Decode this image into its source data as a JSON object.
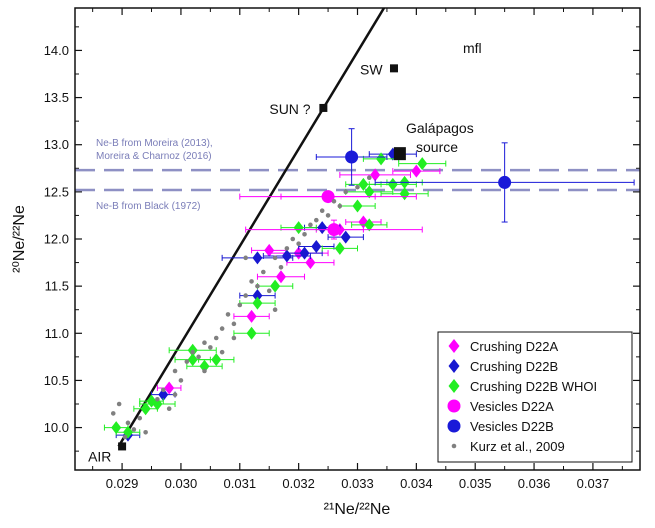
{
  "chart_data": {
    "type": "scatter",
    "xlabel": "²¹Ne/²²Ne",
    "ylabel": "²⁰Ne/²²Ne",
    "xlim": [
      0.0282,
      0.0378
    ],
    "ylim": [
      9.55,
      14.45
    ],
    "xticks": [
      {
        "v": 0.029,
        "label": "0.029"
      },
      {
        "v": 0.03,
        "label": "0.030"
      },
      {
        "v": 0.031,
        "label": "0.031"
      },
      {
        "v": 0.032,
        "label": "0.032"
      },
      {
        "v": 0.033,
        "label": "0.033"
      },
      {
        "v": 0.034,
        "label": "0.034"
      },
      {
        "v": 0.035,
        "label": "0.035"
      },
      {
        "v": 0.036,
        "label": "0.036"
      },
      {
        "v": 0.037,
        "label": "0.037"
      }
    ],
    "yticks": [
      {
        "v": 10.0,
        "label": "10.0"
      },
      {
        "v": 10.5,
        "label": "10.5"
      },
      {
        "v": 11.0,
        "label": "11.0"
      },
      {
        "v": 11.5,
        "label": "11.5"
      },
      {
        "v": 12.0,
        "label": "12.0"
      },
      {
        "v": 12.5,
        "label": "12.5"
      },
      {
        "v": 13.0,
        "label": "13.0"
      },
      {
        "v": 13.5,
        "label": "13.5"
      },
      {
        "v": 14.0,
        "label": "14.0"
      }
    ],
    "mfl": {
      "label": "mfl",
      "x1": 0.02894,
      "y1": 9.8,
      "x2": 0.03345,
      "y2": 14.45
    },
    "reference_lines": [
      {
        "label_lines": [
          "Ne-B from Moreira (2013),",
          "Moreira & Charnoz (2016)"
        ],
        "y": 12.73,
        "color": "#8e90c4"
      },
      {
        "label_lines": [
          "Ne-B from Black (1972)"
        ],
        "y": 12.52,
        "color": "#8e90c4"
      }
    ],
    "annotations": [
      {
        "id": "sw",
        "text": "SW",
        "x": 0.03362,
        "y": 13.81
      },
      {
        "id": "sun",
        "text": "SUN ?",
        "x": 0.03242,
        "y": 13.39
      },
      {
        "id": "air",
        "text": "AIR",
        "x": 0.029,
        "y": 9.8
      },
      {
        "id": "galapagos",
        "text_lines": [
          "Galápagos",
          "source"
        ],
        "x": 0.03372,
        "y": 12.9
      }
    ],
    "series": [
      {
        "name": "Crushing D22A",
        "marker": "diamond",
        "color": "#ff00ff",
        "points": [
          {
            "x": 0.0298,
            "y": 10.42,
            "xerr": 0.0002
          },
          {
            "x": 0.0312,
            "y": 11.18,
            "xerr": 0.0003
          },
          {
            "x": 0.0317,
            "y": 11.6,
            "xerr": 0.0004
          },
          {
            "x": 0.032,
            "y": 11.85,
            "xerr": 0.0005
          },
          {
            "x": 0.0322,
            "y": 11.75,
            "xerr": 0.0004
          },
          {
            "x": 0.0315,
            "y": 11.88,
            "xerr": 0.0003
          },
          {
            "x": 0.0325,
            "y": 12.45,
            "xerr": 0.0008
          },
          {
            "x": 0.0327,
            "y": 12.1,
            "xerr": 0.0004
          },
          {
            "x": 0.0331,
            "y": 12.18,
            "xerr": 0.0003
          },
          {
            "x": 0.0333,
            "y": 12.68,
            "xerr": 0.0006
          },
          {
            "x": 0.034,
            "y": 12.72,
            "xerr": 0.0004
          }
        ]
      },
      {
        "name": "Crushing D22B",
        "marker": "diamond",
        "color": "#1818d0",
        "points": [
          {
            "x": 0.0291,
            "y": 9.92,
            "xerr": 0.0002
          },
          {
            "x": 0.0297,
            "y": 10.35,
            "xerr": 0.0002
          },
          {
            "x": 0.0313,
            "y": 11.4,
            "xerr": 0.0003
          },
          {
            "x": 0.0313,
            "y": 11.8,
            "xerr": 0.0006
          },
          {
            "x": 0.0318,
            "y": 11.82,
            "xerr": 0.0004
          },
          {
            "x": 0.0321,
            "y": 11.85,
            "xerr": 0.0003
          },
          {
            "x": 0.0323,
            "y": 11.92,
            "xerr": 0.0003
          },
          {
            "x": 0.0324,
            "y": 12.12,
            "xerr": 0.0003
          },
          {
            "x": 0.0328,
            "y": 12.02,
            "xerr": 0.0003
          },
          {
            "x": 0.0336,
            "y": 12.9,
            "xerr": 0.0004
          }
        ]
      },
      {
        "name": "Crushing D22B WHOI",
        "marker": "diamond",
        "color": "#22ee22",
        "points": [
          {
            "x": 0.0289,
            "y": 10.0,
            "xerr": 0.0002
          },
          {
            "x": 0.0291,
            "y": 9.95,
            "xerr": 0.0002
          },
          {
            "x": 0.0294,
            "y": 10.2,
            "xerr": 0.0002
          },
          {
            "x": 0.0295,
            "y": 10.28,
            "xerr": 0.0002
          },
          {
            "x": 0.0296,
            "y": 10.25,
            "xerr": 0.0003
          },
          {
            "x": 0.0302,
            "y": 10.72,
            "xerr": 0.0003
          },
          {
            "x": 0.0302,
            "y": 10.82,
            "xerr": 0.0004
          },
          {
            "x": 0.0304,
            "y": 10.65,
            "xerr": 0.0003
          },
          {
            "x": 0.0306,
            "y": 10.72,
            "xerr": 0.0003
          },
          {
            "x": 0.0312,
            "y": 11.0,
            "xerr": 0.0003
          },
          {
            "x": 0.0313,
            "y": 11.32,
            "xerr": 0.0003
          },
          {
            "x": 0.0316,
            "y": 11.5,
            "xerr": 0.0003
          },
          {
            "x": 0.032,
            "y": 12.12,
            "xerr": 0.0003
          },
          {
            "x": 0.0327,
            "y": 11.9,
            "xerr": 0.0003
          },
          {
            "x": 0.033,
            "y": 12.35,
            "xerr": 0.0003
          },
          {
            "x": 0.0331,
            "y": 12.58,
            "xerr": 0.0003
          },
          {
            "x": 0.0332,
            "y": 12.5,
            "xerr": 0.0004
          },
          {
            "x": 0.0334,
            "y": 12.85,
            "xerr": 0.0003
          },
          {
            "x": 0.0336,
            "y": 12.58,
            "xerr": 0.0004
          },
          {
            "x": 0.0338,
            "y": 12.6,
            "xerr": 0.0003
          },
          {
            "x": 0.0338,
            "y": 12.48,
            "xerr": 0.0004
          },
          {
            "x": 0.0341,
            "y": 12.8,
            "xerr": 0.0004
          },
          {
            "x": 0.0332,
            "y": 12.15,
            "xerr": 0.0003
          }
        ]
      },
      {
        "name": "Vesicles D22A",
        "marker": "circle",
        "color": "#ff00ff",
        "points": [
          {
            "x": 0.0325,
            "y": 12.45,
            "xerr": 0.0015,
            "yerr": 0.05
          },
          {
            "x": 0.0326,
            "y": 12.1,
            "xerr": 0.0015,
            "yerr": 0.1
          }
        ]
      },
      {
        "name": "Vesicles D22B",
        "marker": "circle",
        "color": "#1a1ad8",
        "points": [
          {
            "x": 0.0329,
            "y": 12.87,
            "xerr": 0.0006,
            "yerr": 0.3
          },
          {
            "x": 0.0355,
            "y": 12.6,
            "xerr": 0.0022,
            "yerr": 0.42
          }
        ]
      },
      {
        "name": "Kurz et al., 2009",
        "marker": "dot",
        "color": "#808080",
        "points": [
          {
            "x": 0.02885,
            "y": 10.15
          },
          {
            "x": 0.02895,
            "y": 10.25
          },
          {
            "x": 0.02905,
            "y": 9.9
          },
          {
            "x": 0.0291,
            "y": 10.05
          },
          {
            "x": 0.0292,
            "y": 9.98
          },
          {
            "x": 0.0293,
            "y": 10.1
          },
          {
            "x": 0.0294,
            "y": 9.95
          },
          {
            "x": 0.0296,
            "y": 10.3
          },
          {
            "x": 0.0297,
            "y": 10.4
          },
          {
            "x": 0.0298,
            "y": 10.2
          },
          {
            "x": 0.0299,
            "y": 10.35
          },
          {
            "x": 0.03,
            "y": 10.5
          },
          {
            "x": 0.0301,
            "y": 10.7
          },
          {
            "x": 0.0302,
            "y": 10.8
          },
          {
            "x": 0.0303,
            "y": 10.75
          },
          {
            "x": 0.0304,
            "y": 10.9
          },
          {
            "x": 0.0305,
            "y": 10.85
          },
          {
            "x": 0.0306,
            "y": 10.95
          },
          {
            "x": 0.0307,
            "y": 10.8
          },
          {
            "x": 0.0307,
            "y": 11.05
          },
          {
            "x": 0.0308,
            "y": 11.2
          },
          {
            "x": 0.0309,
            "y": 11.1
          },
          {
            "x": 0.031,
            "y": 11.3
          },
          {
            "x": 0.0311,
            "y": 11.4
          },
          {
            "x": 0.0312,
            "y": 11.55
          },
          {
            "x": 0.0313,
            "y": 11.5
          },
          {
            "x": 0.0314,
            "y": 11.65
          },
          {
            "x": 0.0315,
            "y": 11.45
          },
          {
            "x": 0.0316,
            "y": 11.8
          },
          {
            "x": 0.0317,
            "y": 11.7
          },
          {
            "x": 0.0318,
            "y": 11.9
          },
          {
            "x": 0.0319,
            "y": 12.0
          },
          {
            "x": 0.032,
            "y": 11.95
          },
          {
            "x": 0.0321,
            "y": 12.05
          },
          {
            "x": 0.0322,
            "y": 12.15
          },
          {
            "x": 0.0323,
            "y": 12.2
          },
          {
            "x": 0.0324,
            "y": 12.3
          },
          {
            "x": 0.0325,
            "y": 12.25
          },
          {
            "x": 0.0326,
            "y": 12.4
          },
          {
            "x": 0.0327,
            "y": 12.35
          },
          {
            "x": 0.0328,
            "y": 12.5
          },
          {
            "x": 0.033,
            "y": 12.55
          },
          {
            "x": 0.0332,
            "y": 12.65
          },
          {
            "x": 0.0304,
            "y": 10.6
          },
          {
            "x": 0.0309,
            "y": 10.95
          },
          {
            "x": 0.0299,
            "y": 10.6
          },
          {
            "x": 0.0311,
            "y": 11.8
          },
          {
            "x": 0.0316,
            "y": 11.25
          }
        ]
      }
    ],
    "legend": {
      "placement": "bottom-right",
      "entries": [
        "Crushing D22A",
        "Crushing D22B",
        "Crushing D22B WHOI",
        "Vesicles D22A",
        "Vesicles D22B",
        "Kurz et al., 2009"
      ]
    }
  }
}
